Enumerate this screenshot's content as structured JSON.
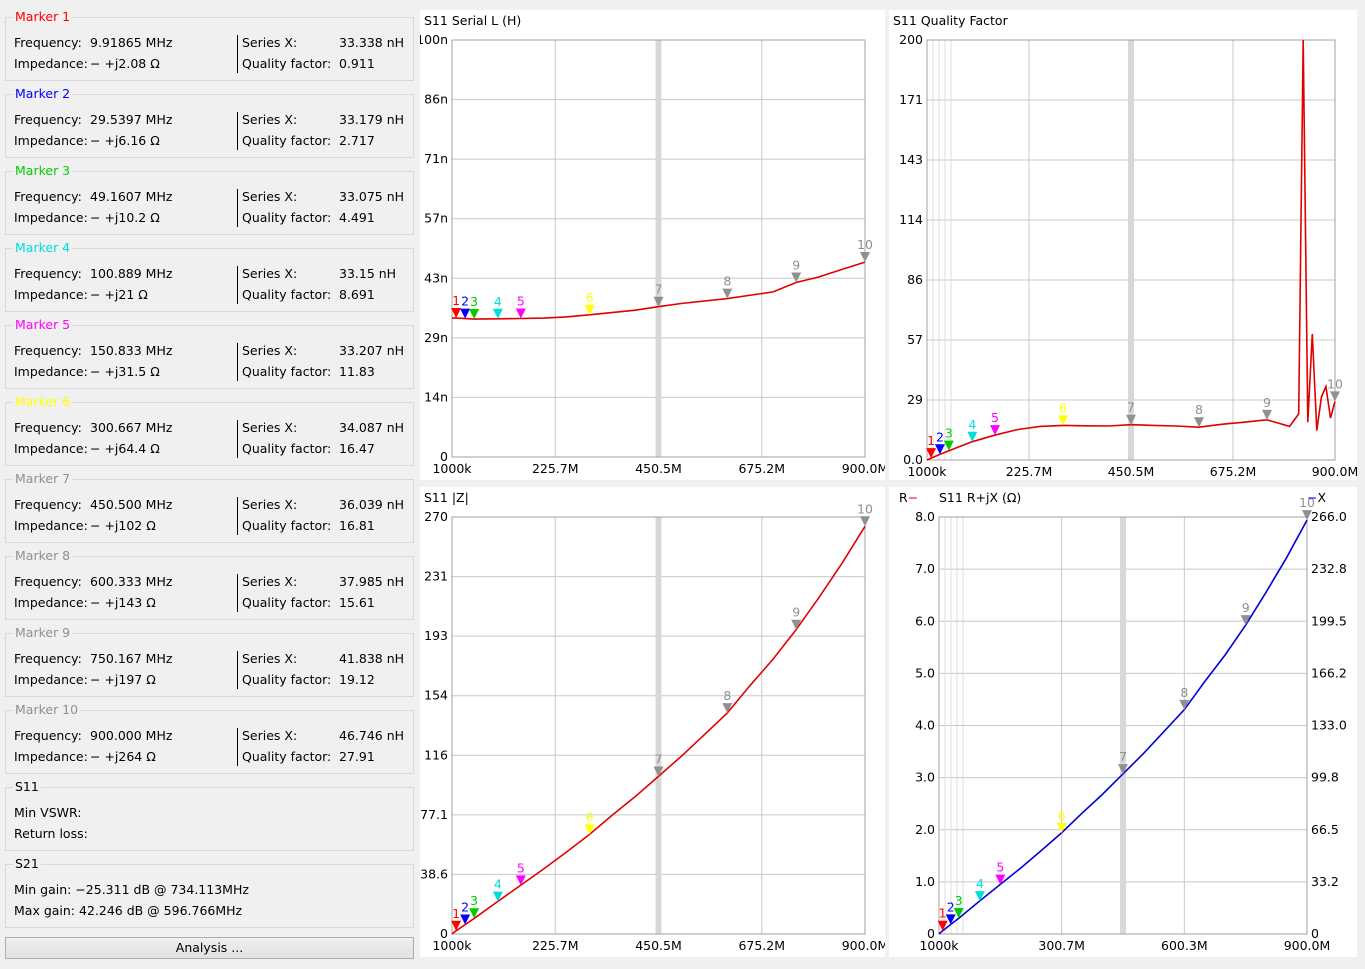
{
  "markers": [
    {
      "title": "Marker 1",
      "color": "#ff0000",
      "freq": "9.91865 MHz",
      "imp": "−  +j2.08 Ω",
      "series_x": "33.338 nH",
      "q": "0.911"
    },
    {
      "title": "Marker 2",
      "color": "#0000ff",
      "freq": "29.5397 MHz",
      "imp": "−  +j6.16 Ω",
      "series_x": "33.179 nH",
      "q": "2.717"
    },
    {
      "title": "Marker 3",
      "color": "#00cc00",
      "freq": "49.1607 MHz",
      "imp": "−  +j10.2 Ω",
      "series_x": "33.075 nH",
      "q": "4.491"
    },
    {
      "title": "Marker 4",
      "color": "#00dddd",
      "freq": "100.889 MHz",
      "imp": "−  +j21  Ω",
      "series_x": "33.15 nH",
      "q": "8.691"
    },
    {
      "title": "Marker 5",
      "color": "#ff00ff",
      "freq": "150.833 MHz",
      "imp": "−  +j31.5 Ω",
      "series_x": "33.207 nH",
      "q": "11.83"
    },
    {
      "title": "Marker 6",
      "color": "#ffff00",
      "freq": "300.667 MHz",
      "imp": "−  +j64.4 Ω",
      "series_x": "34.087 nH",
      "q": "16.47"
    },
    {
      "title": "Marker 7",
      "color": "#909090",
      "freq": "450.500 MHz",
      "imp": "−  +j102 Ω",
      "series_x": "36.039 nH",
      "q": "16.81"
    },
    {
      "title": "Marker 8",
      "color": "#909090",
      "freq": "600.333 MHz",
      "imp": "−  +j143 Ω",
      "series_x": "37.985 nH",
      "q": "15.61"
    },
    {
      "title": "Marker 9",
      "color": "#909090",
      "freq": "750.167 MHz",
      "imp": "−  +j197 Ω",
      "series_x": "41.838 nH",
      "q": "19.12"
    },
    {
      "title": "Marker 10",
      "color": "#909090",
      "freq": "900.000 MHz",
      "imp": "−  +j264 Ω",
      "series_x": "46.746 nH",
      "q": "27.91"
    }
  ],
  "labels": {
    "frequency": "Frequency:",
    "impedance": "Impedance:",
    "series_x": "Series X:",
    "quality": "Quality factor:"
  },
  "s11": {
    "title": "S11",
    "vswr_label": "Min VSWR:",
    "rl_label": "Return loss:"
  },
  "s21": {
    "title": "S21",
    "min_gain": "Min gain:  −25.311 dB @ 734.113MHz",
    "max_gain": "Max gain:  42.246 dB @ 596.766MHz"
  },
  "analysis_button": "Analysis ...",
  "chart_data": [
    {
      "type": "line",
      "title": "S11  Serial L (H)",
      "x_ticks": [
        "1000k",
        "225.7M",
        "450.5M",
        "675.2M",
        "900.0M"
      ],
      "y_ticks": [
        "0",
        "14n",
        "29n",
        "43n",
        "57n",
        "71n",
        "86n",
        "100n"
      ],
      "ylim": [
        0,
        100
      ],
      "xlim": [
        1,
        900
      ],
      "series": [
        {
          "color": "#e00000",
          "x": [
            1,
            10,
            30,
            50,
            100,
            150,
            200,
            250,
            300,
            400,
            450,
            500,
            600,
            700,
            750,
            800,
            850,
            900
          ],
          "y": [
            33.3,
            33.34,
            33.18,
            33.08,
            33.15,
            33.21,
            33.3,
            33.6,
            34.09,
            35.2,
            36.04,
            36.8,
            37.99,
            39.6,
            41.84,
            43.2,
            45.0,
            46.75
          ]
        }
      ],
      "markers": [
        {
          "n": "1",
          "x": 9.92,
          "y": 33.34
        },
        {
          "n": "2",
          "x": 29.54,
          "y": 33.18
        },
        {
          "n": "3",
          "x": 49.16,
          "y": 33.08
        },
        {
          "n": "4",
          "x": 100.89,
          "y": 33.15
        },
        {
          "n": "5",
          "x": 150.83,
          "y": 33.21
        },
        {
          "n": "6",
          "x": 300.67,
          "y": 34.09
        },
        {
          "n": "7",
          "x": 450.5,
          "y": 36.04
        },
        {
          "n": "8",
          "x": 600.33,
          "y": 37.99
        },
        {
          "n": "9",
          "x": 750.17,
          "y": 41.84
        },
        {
          "n": "10",
          "x": 900,
          "y": 46.75
        }
      ]
    },
    {
      "type": "line",
      "title": "S11  Quality Factor",
      "x_ticks": [
        "1000k",
        "225.7M",
        "450.5M",
        "675.2M",
        "900.0M"
      ],
      "y_ticks": [
        "0.0",
        "29",
        "57",
        "86",
        "114",
        "143",
        "171",
        "200"
      ],
      "ylim": [
        0,
        200
      ],
      "xlim": [
        1,
        900
      ],
      "series": [
        {
          "color": "#e00000",
          "x": [
            1,
            10,
            30,
            50,
            100,
            150,
            200,
            250,
            300,
            350,
            400,
            450,
            500,
            550,
            600,
            650,
            700,
            750,
            800,
            820,
            830,
            840,
            850,
            860,
            870,
            880,
            890,
            900
          ],
          "y": [
            0,
            0.91,
            2.72,
            4.49,
            8.69,
            11.83,
            14.5,
            16,
            16.47,
            16.3,
            16.2,
            16.81,
            16.5,
            16.2,
            15.61,
            17,
            18,
            19.12,
            16,
            22,
            200,
            18,
            60,
            14,
            30,
            35,
            20,
            27.91
          ]
        }
      ],
      "markers": [
        {
          "n": "1",
          "x": 9.92,
          "y": 0.91
        },
        {
          "n": "2",
          "x": 29.54,
          "y": 2.72
        },
        {
          "n": "3",
          "x": 49.16,
          "y": 4.49
        },
        {
          "n": "4",
          "x": 100.89,
          "y": 8.69
        },
        {
          "n": "5",
          "x": 150.83,
          "y": 11.83
        },
        {
          "n": "6",
          "x": 300.67,
          "y": 16.47
        },
        {
          "n": "7",
          "x": 450.5,
          "y": 16.81
        },
        {
          "n": "8",
          "x": 600.33,
          "y": 15.61
        },
        {
          "n": "9",
          "x": 750.17,
          "y": 19.12
        },
        {
          "n": "10",
          "x": 900,
          "y": 27.91
        }
      ]
    },
    {
      "type": "line",
      "title": "S11  |Z|",
      "x_ticks": [
        "1000k",
        "225.7M",
        "450.5M",
        "675.2M",
        "900.0M"
      ],
      "y_ticks": [
        "0",
        "38.6",
        "77.1",
        "116",
        "154",
        "193",
        "231",
        "270"
      ],
      "ylim": [
        0,
        270
      ],
      "xlim": [
        1,
        900
      ],
      "series": [
        {
          "color": "#e00000",
          "x": [
            1,
            10,
            30,
            50,
            100,
            150,
            200,
            250,
            300,
            350,
            400,
            450,
            500,
            550,
            600,
            650,
            700,
            750,
            800,
            850,
            900
          ],
          "y": [
            0,
            2.08,
            6.16,
            10.2,
            21,
            31.5,
            42,
            53,
            64.4,
            77,
            89,
            102,
            115,
            129,
            143,
            161,
            178,
            197,
            218,
            240,
            264
          ]
        }
      ],
      "markers": [
        {
          "n": "1",
          "x": 9.92,
          "y": 2.08
        },
        {
          "n": "2",
          "x": 29.54,
          "y": 6.16
        },
        {
          "n": "3",
          "x": 49.16,
          "y": 10.2
        },
        {
          "n": "4",
          "x": 100.89,
          "y": 21
        },
        {
          "n": "5",
          "x": 150.83,
          "y": 31.5
        },
        {
          "n": "6",
          "x": 300.67,
          "y": 64.4
        },
        {
          "n": "7",
          "x": 450.5,
          "y": 102
        },
        {
          "n": "8",
          "x": 600.33,
          "y": 143
        },
        {
          "n": "9",
          "x": 750.17,
          "y": 197
        },
        {
          "n": "10",
          "x": 900,
          "y": 264
        }
      ]
    },
    {
      "type": "line",
      "title": "S11  R+jX (Ω)",
      "legend_r": "R",
      "legend_x": "X",
      "x_ticks": [
        "1000k",
        "300.7M",
        "600.3M",
        "900.0M"
      ],
      "y_ticks": [
        "0",
        "1.0",
        "2.0",
        "3.0",
        "4.0",
        "5.0",
        "6.0",
        "7.0",
        "8.0"
      ],
      "y2_ticks": [
        "0",
        "33.2",
        "66.5",
        "99.8",
        "133.0",
        "166.2",
        "199.5",
        "232.8",
        "266.0"
      ],
      "ylim": [
        0,
        8
      ],
      "y2lim": [
        0,
        266
      ],
      "xlim": [
        1,
        900
      ],
      "series": [
        {
          "color": "#0000dd",
          "axis": "right",
          "x": [
            1,
            10,
            30,
            50,
            100,
            150,
            200,
            250,
            300,
            350,
            400,
            450,
            500,
            550,
            600,
            650,
            700,
            750,
            800,
            850,
            900
          ],
          "y": [
            0,
            2.08,
            6.16,
            10.2,
            21,
            31.5,
            42,
            53,
            64.4,
            77,
            89,
            102,
            115,
            129,
            143,
            161,
            178,
            197,
            218,
            240,
            264
          ]
        }
      ],
      "markers": [
        {
          "n": "1",
          "x": 9.92,
          "y": 2.08
        },
        {
          "n": "2",
          "x": 29.54,
          "y": 6.16
        },
        {
          "n": "3",
          "x": 49.16,
          "y": 10.2
        },
        {
          "n": "4",
          "x": 100.89,
          "y": 21
        },
        {
          "n": "5",
          "x": 150.83,
          "y": 31.5
        },
        {
          "n": "6",
          "x": 300.67,
          "y": 64.4
        },
        {
          "n": "7",
          "x": 450.5,
          "y": 102
        },
        {
          "n": "8",
          "x": 600.33,
          "y": 143
        },
        {
          "n": "9",
          "x": 750.17,
          "y": 197
        },
        {
          "n": "10",
          "x": 900,
          "y": 264
        }
      ]
    }
  ]
}
